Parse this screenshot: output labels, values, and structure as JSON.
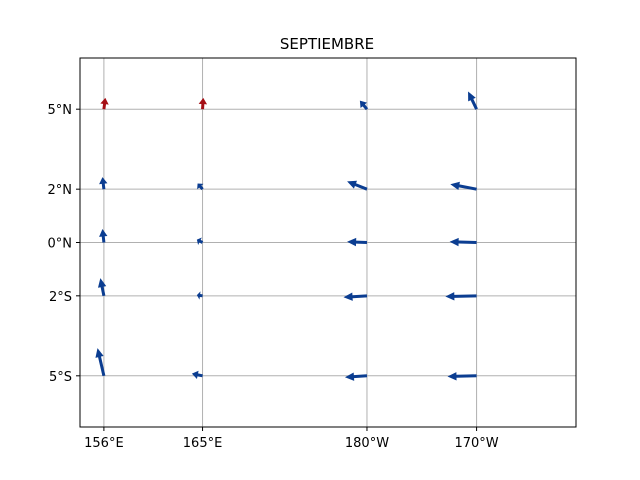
{
  "title": "SEPTIEMBRE",
  "colors": {
    "westward": "#0b3d91",
    "eastward": "#a50f15",
    "grid": "#b0b0b0"
  },
  "chart_data": {
    "type": "vector-field",
    "title": "SEPTIEMBRE",
    "x_axis": {
      "ticks": [
        {
          "lon": 156,
          "label": "156°E"
        },
        {
          "lon": 165,
          "label": "165°E"
        },
        {
          "lon": 180,
          "label": "180°W"
        },
        {
          "lon": 190,
          "label": "170°W"
        }
      ]
    },
    "y_axis": {
      "ticks": [
        {
          "lat": 5,
          "label": "5°N"
        },
        {
          "lat": 2,
          "label": "2°N"
        },
        {
          "lat": 0,
          "label": "0°N"
        },
        {
          "lat": -2,
          "label": "2°S"
        },
        {
          "lat": -5,
          "label": "5°S"
        }
      ]
    },
    "grid": true,
    "vectors": [
      {
        "lon": 156,
        "lat": 5,
        "u": 0.2,
        "v": 1.6,
        "color": "eastward"
      },
      {
        "lon": 165,
        "lat": 5,
        "u": 0.1,
        "v": 1.6,
        "color": "eastward"
      },
      {
        "lon": 180,
        "lat": 5,
        "u": -1.0,
        "v": 1.2,
        "color": "westward"
      },
      {
        "lon": 190,
        "lat": 5,
        "u": -1.2,
        "v": 2.5,
        "color": "westward"
      },
      {
        "lon": 156,
        "lat": 2,
        "u": -0.2,
        "v": 1.7,
        "color": "westward"
      },
      {
        "lon": 165,
        "lat": 2,
        "u": -0.7,
        "v": 0.8,
        "color": "westward"
      },
      {
        "lon": 180,
        "lat": 2,
        "u": -2.8,
        "v": 1.1,
        "color": "westward"
      },
      {
        "lon": 190,
        "lat": 2,
        "u": -3.7,
        "v": 0.7,
        "color": "westward"
      },
      {
        "lon": 156,
        "lat": 0,
        "u": -0.2,
        "v": 1.9,
        "color": "westward"
      },
      {
        "lon": 165,
        "lat": 0,
        "u": -0.8,
        "v": 0.4,
        "color": "westward"
      },
      {
        "lon": 180,
        "lat": 0,
        "u": -2.8,
        "v": 0.1,
        "color": "westward"
      },
      {
        "lon": 190,
        "lat": 0,
        "u": -3.8,
        "v": 0.1,
        "color": "westward"
      },
      {
        "lon": 156,
        "lat": -2,
        "u": -0.5,
        "v": 2.5,
        "color": "westward"
      },
      {
        "lon": 165,
        "lat": -2,
        "u": -0.8,
        "v": 0.1,
        "color": "westward"
      },
      {
        "lon": 180,
        "lat": -2,
        "u": -3.3,
        "v": -0.2,
        "color": "westward"
      },
      {
        "lon": 190,
        "lat": -2,
        "u": -4.4,
        "v": -0.1,
        "color": "westward"
      },
      {
        "lon": 156,
        "lat": -5,
        "u": -0.9,
        "v": 3.9,
        "color": "westward"
      },
      {
        "lon": 165,
        "lat": -5,
        "u": -1.5,
        "v": 0.3,
        "color": "westward"
      },
      {
        "lon": 180,
        "lat": -5,
        "u": -3.1,
        "v": -0.2,
        "color": "westward"
      },
      {
        "lon": 190,
        "lat": -5,
        "u": -4.1,
        "v": -0.1,
        "color": "westward"
      }
    ]
  }
}
